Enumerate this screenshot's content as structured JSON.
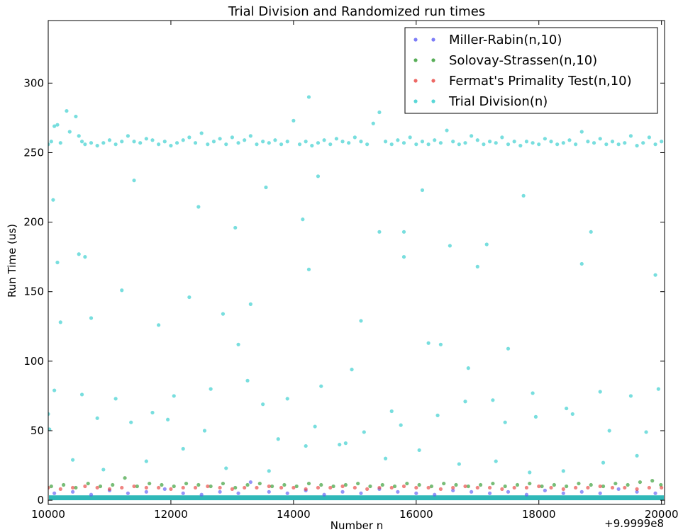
{
  "chart_data": {
    "type": "scatter",
    "title": "Trial Division and Randomized run times",
    "xlabel": "Number n",
    "ylabel": "Run Time (us)",
    "x_offset_label": "+9.9999e8",
    "xlim": [
      10000,
      20050
    ],
    "ylim": [
      -3,
      345
    ],
    "x_ticks": [
      10000,
      12000,
      14000,
      16000,
      18000,
      20000
    ],
    "x_tick_labels": [
      "10000",
      "12000",
      "14000",
      "16000",
      "18000",
      "20000"
    ],
    "y_ticks": [
      0,
      50,
      100,
      150,
      200,
      250,
      300
    ],
    "y_tick_labels": [
      "0",
      "50",
      "100",
      "150",
      "200",
      "250",
      "300"
    ],
    "grid": false,
    "legend_position": "top-right",
    "series": [
      {
        "name": "Miller-Rabin(n,10)",
        "color": "#5b5bf5",
        "x": [
          10100,
          10400,
          10700,
          11000,
          11300,
          11600,
          11900,
          12200,
          12500,
          12800,
          13100,
          13300,
          13600,
          13900,
          14200,
          14500,
          14800,
          15100,
          15400,
          15700,
          16000,
          16300,
          16600,
          16900,
          17200,
          17500,
          17800,
          18100,
          18400,
          18700,
          19000,
          19300,
          19600,
          19900
        ],
        "y": [
          5,
          6,
          4,
          7,
          5,
          6,
          8,
          5,
          4,
          6,
          5,
          13,
          6,
          5,
          7,
          4,
          6,
          5,
          8,
          6,
          5,
          4,
          7,
          6,
          5,
          6,
          4,
          7,
          5,
          6,
          5,
          8,
          6,
          5
        ]
      },
      {
        "name": "Solovay-Strassen(n,10)",
        "color": "#2e9a2e",
        "x": [
          10050,
          10250,
          10450,
          10650,
          10850,
          11050,
          11250,
          11450,
          11650,
          11850,
          12050,
          12250,
          12450,
          12650,
          12850,
          13050,
          13250,
          13450,
          13650,
          13850,
          14050,
          14250,
          14450,
          14650,
          14850,
          15050,
          15250,
          15450,
          15650,
          15850,
          16050,
          16250,
          16450,
          16650,
          16850,
          17050,
          17250,
          17450,
          17650,
          17850,
          18050,
          18250,
          18450,
          18650,
          18850,
          19050,
          19250,
          19450,
          19650,
          19850,
          19990
        ],
        "y": [
          10,
          11,
          9,
          12,
          10,
          11,
          16,
          10,
          12,
          11,
          10,
          12,
          11,
          10,
          12,
          9,
          11,
          12,
          10,
          11,
          10,
          12,
          11,
          10,
          11,
          12,
          10,
          11,
          10,
          12,
          11,
          10,
          12,
          11,
          10,
          11,
          12,
          10,
          11,
          12,
          10,
          11,
          10,
          12,
          11,
          10,
          12,
          11,
          13,
          14,
          11
        ]
      },
      {
        "name": "Fermat's Primality Test(n,10)",
        "color": "#e8423e",
        "x": [
          10000,
          10200,
          10400,
          10600,
          10800,
          11000,
          11200,
          11400,
          11600,
          11800,
          12000,
          12200,
          12400,
          12600,
          12800,
          13000,
          13200,
          13400,
          13600,
          13800,
          14000,
          14200,
          14400,
          14600,
          14800,
          15000,
          15200,
          15400,
          15600,
          15800,
          16000,
          16200,
          16400,
          16600,
          16800,
          17000,
          17200,
          17400,
          17600,
          17800,
          18000,
          18200,
          18400,
          18600,
          18800,
          19000,
          19200,
          19400,
          19600,
          19800,
          20000
        ],
        "y": [
          9,
          8,
          9,
          10,
          9,
          8,
          9,
          10,
          9,
          9,
          8,
          9,
          9,
          10,
          9,
          8,
          9,
          9,
          10,
          9,
          9,
          8,
          9,
          9,
          10,
          9,
          8,
          9,
          9,
          10,
          9,
          9,
          8,
          9,
          10,
          9,
          9,
          8,
          9,
          9,
          10,
          9,
          8,
          9,
          9,
          10,
          9,
          9,
          8,
          9,
          9
        ]
      },
      {
        "name": "Trial Division(n)",
        "color": "#2fcdcd",
        "x": [
          10000,
          10050,
          10100,
          10150,
          10200,
          10300,
          10350,
          10450,
          10500,
          10550,
          10600,
          10700,
          10800,
          10900,
          11000,
          11100,
          11200,
          11300,
          11400,
          11500,
          11600,
          11700,
          11800,
          11900,
          12000,
          12100,
          12200,
          12300,
          12400,
          12500,
          12600,
          12700,
          12800,
          12900,
          13000,
          13100,
          13200,
          13300,
          13400,
          13500,
          13600,
          13700,
          13800,
          13900,
          14000,
          14100,
          14200,
          14250,
          14300,
          14400,
          14500,
          14600,
          14700,
          14800,
          14900,
          15000,
          15100,
          15200,
          15300,
          15400,
          15500,
          15600,
          15700,
          15800,
          15900,
          16000,
          16100,
          16200,
          16300,
          16400,
          16500,
          16600,
          16700,
          16800,
          16900,
          17000,
          17100,
          17200,
          17300,
          17400,
          17500,
          17600,
          17700,
          17800,
          17900,
          18000,
          18100,
          18200,
          18300,
          18400,
          18500,
          18600,
          18700,
          18800,
          18900,
          19000,
          19100,
          19200,
          19300,
          19400,
          19500,
          19600,
          19700,
          19800,
          19900,
          20000,
          10080,
          10150,
          10600,
          11400,
          11800,
          12450,
          13050,
          13550,
          14150,
          14400,
          15400,
          15800,
          16100,
          16550,
          17150,
          17750,
          18850,
          10100,
          10500,
          10700,
          11200,
          12300,
          12850,
          13300,
          14250,
          15100,
          15800,
          16400,
          17000,
          17500,
          18700,
          19900,
          10000,
          10550,
          11100,
          11700,
          12050,
          12650,
          13100,
          13500,
          13900,
          14450,
          14950,
          15600,
          16200,
          16800,
          17250,
          17900,
          18450,
          19000,
          19500,
          19950,
          10200,
          10800,
          11350,
          11950,
          12550,
          13250,
          13750,
          14350,
          14750,
          15150,
          15750,
          16350,
          16850,
          17450,
          17950,
          18550,
          19150,
          19750,
          10020,
          10400,
          10900,
          11600,
          12200,
          12900,
          13600,
          14200,
          14850,
          15500,
          16050,
          16700,
          17300,
          17850,
          18400,
          19050,
          19600
        ],
        "y": [
          256,
          258,
          269,
          270,
          257,
          280,
          265,
          276,
          262,
          258,
          256,
          257,
          255,
          257,
          259,
          256,
          258,
          262,
          258,
          257,
          260,
          259,
          256,
          258,
          255,
          257,
          259,
          261,
          257,
          264,
          256,
          258,
          260,
          256,
          261,
          257,
          259,
          262,
          256,
          258,
          257,
          259,
          256,
          258,
          273,
          256,
          258,
          290,
          255,
          257,
          259,
          256,
          260,
          258,
          257,
          261,
          258,
          256,
          271,
          279,
          258,
          256,
          259,
          257,
          261,
          256,
          258,
          256,
          259,
          257,
          266,
          258,
          256,
          257,
          262,
          259,
          256,
          258,
          257,
          261,
          256,
          258,
          255,
          258,
          257,
          256,
          260,
          258,
          256,
          257,
          259,
          256,
          265,
          258,
          257,
          260,
          256,
          258,
          256,
          257,
          262,
          255,
          257,
          261,
          256,
          258,
          216,
          171,
          175,
          230,
          126,
          211,
          196,
          225,
          202,
          233,
          193,
          193,
          223,
          183,
          184,
          219,
          193,
          79,
          177,
          131,
          151,
          146,
          134,
          141,
          166,
          129,
          175,
          112,
          168,
          109,
          170,
          162,
          62,
          76,
          73,
          63,
          75,
          80,
          112,
          69,
          73,
          82,
          94,
          64,
          113,
          71,
          72,
          77,
          66,
          78,
          75,
          80,
          128,
          59,
          56,
          58,
          50,
          86,
          44,
          53,
          40,
          49,
          54,
          61,
          95,
          56,
          60,
          62,
          50,
          49,
          51,
          29,
          22,
          28,
          37,
          23,
          21,
          39,
          41,
          30,
          36,
          26,
          28,
          20,
          21,
          27,
          32
        ]
      }
    ]
  }
}
